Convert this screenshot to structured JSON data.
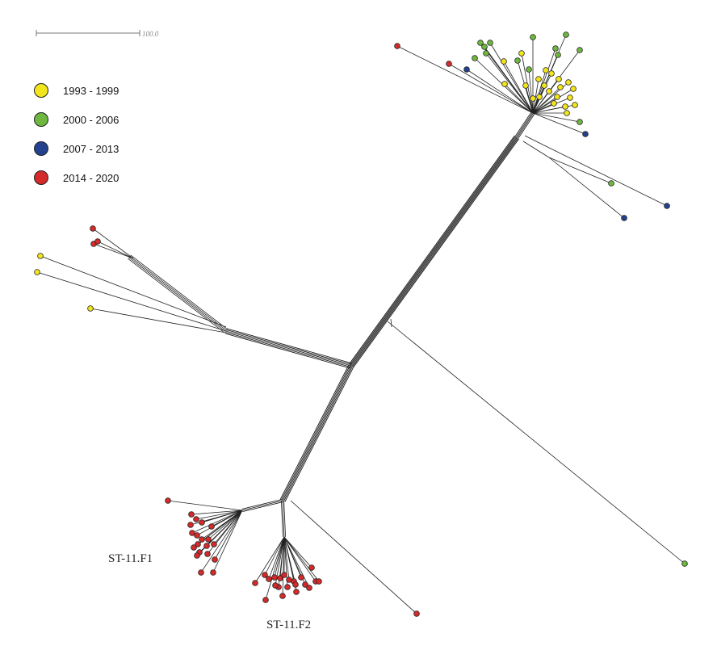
{
  "scale_bar": {
    "label": "100.0"
  },
  "legend": [
    {
      "label": "1993 - 1999",
      "color": "#f3e51c"
    },
    {
      "label": "2000 - 2006",
      "color": "#6fb83f"
    },
    {
      "label": "2007 - 2013",
      "color": "#23418f"
    },
    {
      "label": "2014 - 2020",
      "color": "#d42a2a"
    }
  ],
  "cluster_labels": {
    "f1": "ST-11.F1",
    "f2": "ST-11.F2"
  }
}
